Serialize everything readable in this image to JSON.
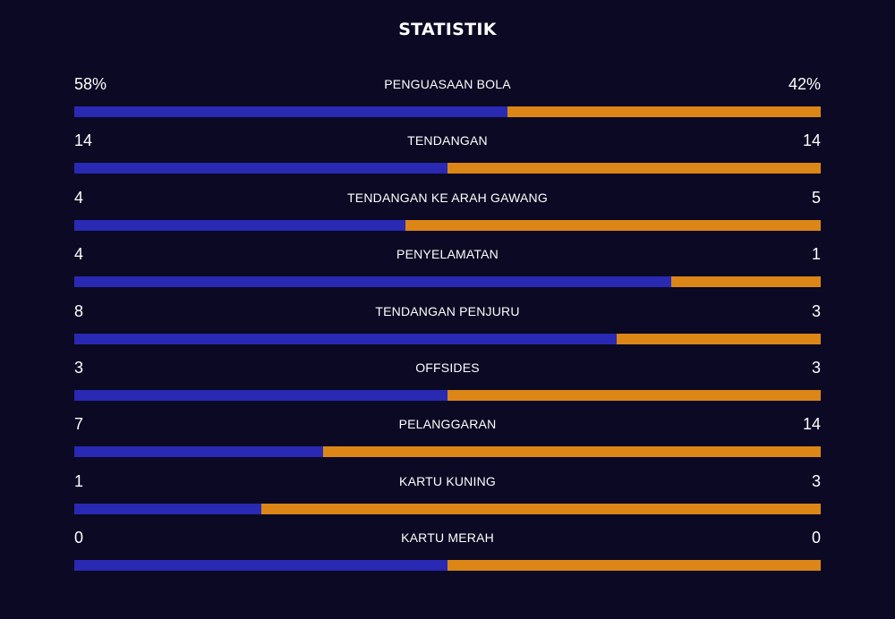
{
  "header": {
    "title": "STATISTIK"
  },
  "colors": {
    "home": "#2929b4",
    "away": "#dc8618",
    "background": "#0b0923"
  },
  "stats": [
    {
      "label": "PENGUASAAN BOLA",
      "home": "58%",
      "away": "42%",
      "home_share": 0.58
    },
    {
      "label": "TENDANGAN",
      "home": "14",
      "away": "14",
      "home_share": 0.5
    },
    {
      "label": "TENDANGAN KE ARAH GAWANG",
      "home": "4",
      "away": "5",
      "home_share": 0.444
    },
    {
      "label": "PENYELAMATAN",
      "home": "4",
      "away": "1",
      "home_share": 0.8
    },
    {
      "label": "TENDANGAN PENJURU",
      "home": "8",
      "away": "3",
      "home_share": 0.727
    },
    {
      "label": "OFFSIDES",
      "home": "3",
      "away": "3",
      "home_share": 0.5
    },
    {
      "label": "PELANGGARAN",
      "home": "7",
      "away": "14",
      "home_share": 0.333
    },
    {
      "label": "KARTU KUNING",
      "home": "1",
      "away": "3",
      "home_share": 0.25
    },
    {
      "label": "KARTU MERAH",
      "home": "0",
      "away": "0",
      "home_share": 0.5
    }
  ]
}
